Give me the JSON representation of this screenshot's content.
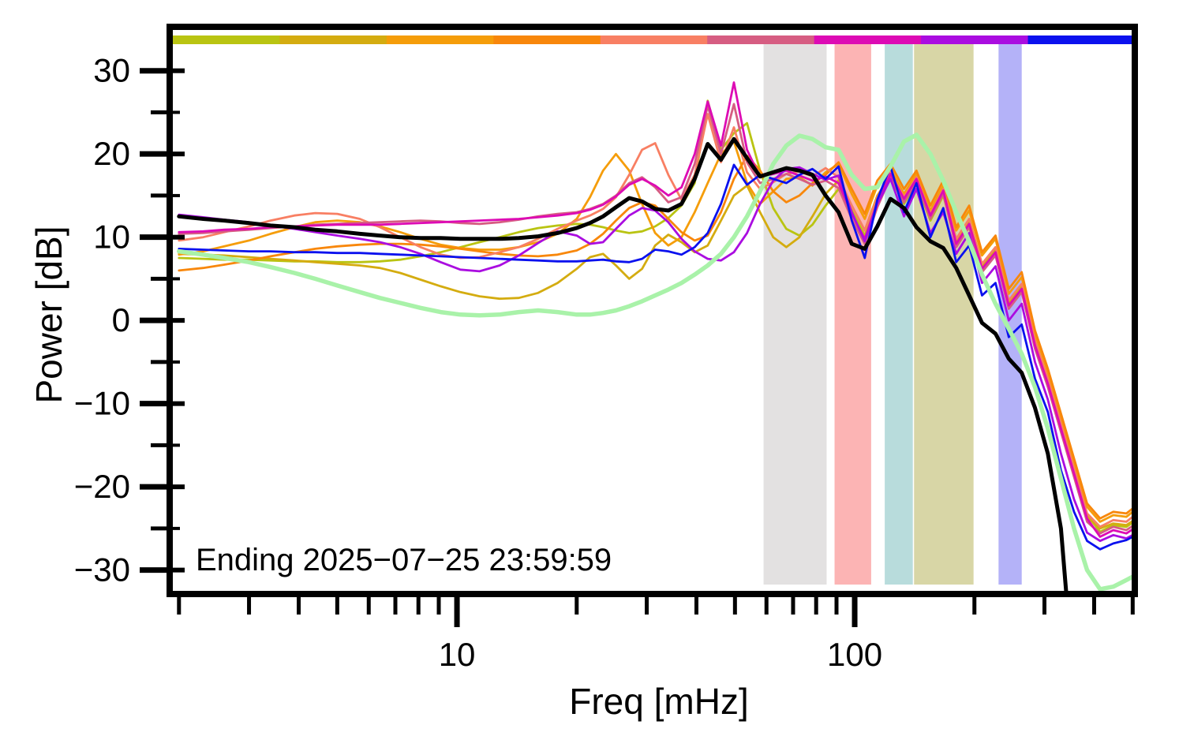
{
  "figure": {
    "y_axis_label": "Power [dB]",
    "x_axis_label": "Freq [mHz]",
    "annotation": "Ending 2025−07−25 23:59:59"
  },
  "chart_data": {
    "type": "line",
    "x_scale": "log",
    "xlabel": "Freq [mHz]",
    "ylabel": "Power [dB]",
    "xlim": [
      1.93,
      497
    ],
    "ylim": [
      -32.5,
      34.9
    ],
    "grid": false,
    "x_ticks": [
      {
        "value": 10,
        "label": "10"
      },
      {
        "value": 100,
        "label": "100"
      }
    ],
    "x_minor_ticks": [
      2,
      3,
      4,
      5,
      6,
      7,
      8,
      9,
      20,
      30,
      40,
      50,
      60,
      70,
      80,
      90,
      200,
      300,
      400,
      500
    ],
    "y_ticks": [
      {
        "value": 30,
        "label": "30"
      },
      {
        "value": 20,
        "label": "20"
      },
      {
        "value": 10,
        "label": "10"
      },
      {
        "value": 0,
        "label": "0"
      },
      {
        "value": -10,
        "label": "−10"
      },
      {
        "value": -20,
        "label": "−20"
      },
      {
        "value": -30,
        "label": "−30"
      }
    ],
    "y_minor_ticks": [
      25,
      15,
      5,
      -5,
      -15,
      -25
    ],
    "top_bar_segments": [
      {
        "name": "segment-1-yellowgreen",
        "color": "#b9c412"
      },
      {
        "name": "segment-2-gold",
        "color": "#d4ac10"
      },
      {
        "name": "segment-3-orange",
        "color": "#f59d0a"
      },
      {
        "name": "segment-4-darkorange",
        "color": "#f8870b"
      },
      {
        "name": "segment-5-salmon",
        "color": "#f87f63"
      },
      {
        "name": "segment-6-rose",
        "color": "#d65d82"
      },
      {
        "name": "segment-7-magenta",
        "color": "#dd0bb4"
      },
      {
        "name": "segment-8-violet",
        "color": "#aa0de0"
      },
      {
        "name": "segment-9-blue",
        "color": "#0b11ee"
      }
    ],
    "bands": [
      {
        "name": "band-gray",
        "color": "#e3e1e1",
        "f_start": 59,
        "f_end": 85
      },
      {
        "name": "band-pink",
        "color": "#fcb4b4",
        "f_start": 89,
        "f_end": 110
      },
      {
        "name": "band-teal",
        "color": "#b8dcdc",
        "f_start": 119,
        "f_end": 140
      },
      {
        "name": "band-olive",
        "color": "#d8d6a6",
        "f_start": 141,
        "f_end": 199
      },
      {
        "name": "band-lavender",
        "color": "#b4b2f8",
        "f_start": 230,
        "f_end": 263
      }
    ],
    "x_mhz": [
      2.0,
      2.3,
      2.6,
      3.0,
      3.4,
      3.9,
      4.4,
      5.0,
      5.7,
      6.4,
      7.2,
      8.1,
      9.1,
      10.2,
      11.4,
      12.8,
      14.3,
      16.0,
      17.9,
      20.0,
      21.6,
      23.3,
      25.1,
      27.1,
      29.2,
      31.5,
      34.0,
      36.7,
      39.6,
      42.7,
      46.1,
      49.7,
      53.6,
      57.8,
      62.4,
      67.3,
      72.6,
      78.3,
      84.5,
      91.1,
      98.3,
      106,
      114,
      123,
      133,
      143,
      155,
      167,
      180,
      194,
      209,
      226,
      244,
      263,
      284,
      306,
      330,
      356,
      384,
      414,
      447,
      482,
      500
    ],
    "series": [
      {
        "name": "spectrum-yellowgreen",
        "color": "#b9c412",
        "width": 2.8,
        "y": [
          7.5,
          7.4,
          7.3,
          7.3,
          7.2,
          7.1,
          7.1,
          7.0,
          7.0,
          7.1,
          7.3,
          7.7,
          8.2,
          8.8,
          9.4,
          10.0,
          10.6,
          11.1,
          11.4,
          11.6,
          11.5,
          11.2,
          10.8,
          10.5,
          10.7,
          11.3,
          12.3,
          13.8,
          16.5,
          26.4,
          20.5,
          22.5,
          23.7,
          18.0,
          13.5,
          11.0,
          10.2,
          11.5,
          13.8,
          15.8,
          13.2,
          10.2,
          14.4,
          17.2,
          14.0,
          16.4,
          12.0,
          15.0,
          9.6,
          11.8,
          6.6,
          8.6,
          2.2,
          4.2,
          -2.6,
          -7.4,
          -12.6,
          -18.0,
          -23.4,
          -25.4,
          -24.6,
          -24.8,
          -24.3
        ]
      },
      {
        "name": "spectrum-gold",
        "color": "#d4ac10",
        "width": 2.8,
        "y": [
          8.0,
          7.9,
          7.8,
          7.6,
          7.4,
          7.2,
          7.0,
          6.8,
          6.6,
          6.3,
          5.7,
          4.9,
          4.1,
          3.4,
          2.9,
          2.6,
          2.7,
          3.3,
          4.5,
          6.2,
          7.6,
          8.0,
          6.6,
          5.0,
          6.2,
          9.0,
          10.3,
          9.4,
          8.2,
          9.0,
          12.0,
          15.0,
          16.2,
          13.0,
          10.0,
          8.8,
          10.0,
          12.5,
          15.2,
          16.8,
          13.8,
          10.8,
          15.0,
          17.4,
          14.4,
          16.8,
          12.4,
          15.4,
          9.4,
          12.0,
          6.4,
          8.4,
          2.0,
          4.0,
          -2.8,
          -7.2,
          -12.8,
          -18.2,
          -23.6,
          -25.0,
          -24.4,
          -24.6,
          -24.1
        ]
      },
      {
        "name": "spectrum-orange",
        "color": "#f59d0a",
        "width": 2.8,
        "y": [
          7.9,
          8.3,
          8.9,
          9.6,
          10.4,
          11.2,
          11.8,
          12.0,
          11.8,
          11.3,
          10.6,
          9.8,
          9.1,
          8.7,
          8.5,
          8.5,
          8.8,
          9.4,
          10.4,
          12.2,
          14.8,
          18.0,
          20.0,
          18.0,
          14.0,
          10.5,
          9.0,
          10.0,
          13.0,
          16.5,
          20.0,
          21.5,
          16.5,
          14.0,
          15.5,
          17.0,
          17.2,
          16.2,
          17.8,
          18.8,
          15.2,
          12.2,
          16.2,
          18.2,
          15.2,
          17.6,
          13.2,
          16.2,
          10.8,
          13.2,
          7.8,
          9.8,
          3.2,
          5.2,
          -1.6,
          -6.2,
          -11.6,
          -17.0,
          -22.4,
          -24.2,
          -23.4,
          -23.6,
          -23.0
        ]
      },
      {
        "name": "spectrum-darkorange",
        "color": "#f8870b",
        "width": 2.8,
        "y": [
          6.0,
          6.3,
          6.7,
          7.2,
          7.7,
          8.2,
          8.6,
          8.9,
          9.1,
          9.2,
          9.2,
          9.1,
          8.9,
          8.6,
          8.3,
          8.0,
          7.8,
          7.7,
          7.9,
          8.4,
          9.2,
          10.4,
          12.0,
          13.5,
          14.2,
          13.8,
          12.2,
          10.6,
          9.6,
          10.2,
          13.0,
          17.0,
          19.8,
          18.0,
          15.5,
          14.2,
          15.0,
          16.5,
          17.5,
          19.0,
          15.8,
          12.8,
          16.8,
          18.8,
          15.8,
          18.0,
          13.8,
          16.8,
          11.2,
          13.8,
          8.2,
          10.2,
          3.8,
          5.8,
          -1.2,
          -5.8,
          -11.2,
          -16.6,
          -22.0,
          -23.8,
          -23.0,
          -23.2,
          -22.6
        ]
      },
      {
        "name": "spectrum-salmon",
        "color": "#f87f63",
        "width": 2.8,
        "y": [
          9.6,
          10.0,
          10.6,
          11.3,
          12.0,
          12.6,
          12.9,
          12.8,
          12.2,
          11.2,
          10.0,
          8.8,
          7.9,
          7.5,
          7.6,
          8.2,
          8.8,
          9.8,
          11.0,
          12.0,
          12.6,
          13.4,
          14.8,
          17.5,
          20.5,
          21.3,
          17.5,
          14.5,
          17.5,
          24.8,
          19.0,
          23.2,
          17.8,
          15.8,
          16.6,
          17.6,
          17.9,
          17.3,
          18.3,
          17.2,
          13.8,
          10.8,
          14.8,
          17.8,
          14.8,
          17.2,
          12.8,
          15.8,
          9.8,
          12.2,
          6.8,
          8.8,
          2.4,
          4.4,
          -2.4,
          -7.0,
          -12.4,
          -17.8,
          -23.2,
          -24.8,
          -24.0,
          -24.2,
          -23.6
        ]
      },
      {
        "name": "spectrum-rose",
        "color": "#d65d82",
        "width": 2.8,
        "y": [
          10.4,
          10.5,
          10.7,
          10.9,
          11.1,
          11.3,
          11.5,
          11.6,
          11.7,
          11.8,
          11.9,
          12.0,
          11.9,
          11.7,
          11.6,
          11.8,
          12.1,
          12.5,
          12.8,
          13.0,
          13.4,
          14.0,
          15.0,
          16.5,
          17.2,
          16.0,
          14.2,
          14.8,
          18.8,
          25.8,
          20.0,
          26.0,
          19.0,
          16.5,
          17.0,
          17.6,
          17.0,
          16.3,
          16.8,
          15.9,
          12.2,
          9.2,
          13.6,
          17.2,
          14.2,
          16.6,
          12.2,
          15.2,
          8.8,
          11.2,
          5.8,
          7.8,
          1.4,
          3.4,
          -3.4,
          -8.0,
          -13.4,
          -18.8,
          -24.2,
          -25.6,
          -24.8,
          -25.2,
          -24.7
        ]
      },
      {
        "name": "spectrum-magenta",
        "color": "#dd0bb4",
        "width": 2.8,
        "y": [
          10.6,
          10.7,
          10.9,
          11.0,
          11.2,
          11.3,
          11.4,
          11.5,
          11.5,
          11.5,
          11.6,
          11.7,
          11.8,
          11.9,
          12.0,
          12.1,
          12.2,
          12.4,
          12.6,
          12.9,
          13.3,
          13.9,
          14.9,
          16.3,
          17.0,
          16.2,
          15.0,
          16.0,
          20.0,
          26.3,
          21.0,
          28.6,
          20.5,
          17.2,
          17.6,
          18.0,
          17.4,
          16.8,
          17.3,
          16.5,
          12.8,
          9.8,
          14.2,
          17.6,
          14.6,
          17.0,
          12.6,
          15.6,
          9.2,
          11.6,
          6.2,
          8.2,
          1.8,
          3.8,
          -3.0,
          -7.6,
          -13.0,
          -18.4,
          -23.8,
          -26.0,
          -25.2,
          -25.6,
          -25.1
        ]
      },
      {
        "name": "spectrum-violet",
        "color": "#aa0de0",
        "width": 2.8,
        "y": [
          12.7,
          12.4,
          12.1,
          11.8,
          11.4,
          11.0,
          10.6,
          10.2,
          9.8,
          9.4,
          8.8,
          8.0,
          7.0,
          6.1,
          5.9,
          6.6,
          7.8,
          9.3,
          10.7,
          10.2,
          9.2,
          9.4,
          11.0,
          12.6,
          13.5,
          13.2,
          11.8,
          9.8,
          8.3,
          7.4,
          7.2,
          8.2,
          10.5,
          14.0,
          16.8,
          18.2,
          18.4,
          17.6,
          16.9,
          17.4,
          13.0,
          9.5,
          14.0,
          17.0,
          12.5,
          15.8,
          10.5,
          13.0,
          8.0,
          10.5,
          4.5,
          6.5,
          0.0,
          2.0,
          -5.0,
          -9.5,
          -16.0,
          -21.5,
          -25.5,
          -26.5,
          -25.8,
          -26.2,
          -25.8
        ]
      },
      {
        "name": "spectrum-blue",
        "color": "#0b11ee",
        "width": 2.8,
        "y": [
          8.6,
          8.5,
          8.4,
          8.3,
          8.3,
          8.2,
          8.2,
          8.1,
          8.1,
          8.0,
          7.9,
          7.8,
          7.7,
          7.6,
          7.5,
          7.4,
          7.3,
          7.2,
          7.1,
          7.1,
          7.2,
          7.3,
          7.1,
          7.0,
          7.4,
          8.5,
          8.3,
          7.9,
          8.8,
          10.5,
          14.0,
          18.7,
          16.3,
          17.5,
          17.0,
          16.5,
          17.5,
          18.2,
          17.0,
          18.5,
          12.0,
          7.5,
          14.5,
          18.5,
          13.0,
          16.5,
          10.0,
          13.5,
          7.0,
          9.0,
          3.0,
          4.5,
          -2.0,
          -0.5,
          -7.0,
          -11.0,
          -18.0,
          -23.0,
          -26.5,
          -27.5,
          -26.8,
          -26.4,
          -26.0
        ]
      },
      {
        "name": "reference-pale-green",
        "color": "#a9f2a9",
        "width": 5.5,
        "y": [
          8.3,
          7.9,
          7.5,
          7.0,
          6.4,
          5.7,
          5.0,
          4.2,
          3.4,
          2.7,
          2.1,
          1.5,
          1.0,
          0.7,
          0.6,
          0.7,
          1.0,
          1.2,
          1.0,
          0.7,
          0.7,
          0.9,
          1.2,
          1.7,
          2.3,
          3.0,
          3.7,
          4.5,
          5.5,
          6.6,
          8.0,
          10.0,
          12.5,
          15.5,
          18.8,
          21.0,
          22.2,
          21.8,
          20.8,
          20.5,
          17.5,
          15.8,
          16.0,
          18.5,
          21.5,
          22.3,
          20.0,
          16.8,
          13.0,
          9.5,
          5.5,
          2.0,
          -1.0,
          -4.0,
          -8.0,
          -13.0,
          -19.0,
          -25.0,
          -30.0,
          -32.3,
          -32.0,
          -31.2,
          -30.8
        ]
      },
      {
        "name": "mean-black",
        "color": "#000000",
        "width": 5.0,
        "x": [
          2.0,
          2.3,
          2.6,
          3.0,
          3.4,
          3.9,
          4.4,
          5.0,
          5.7,
          6.4,
          7.2,
          8.1,
          9.1,
          10.2,
          11.4,
          12.8,
          14.3,
          16.0,
          17.9,
          20.0,
          21.6,
          23.3,
          25.1,
          27.1,
          29.2,
          31.5,
          34.0,
          36.7,
          39.6,
          42.7,
          46.1,
          49.7,
          53.6,
          57.8,
          62.4,
          67.3,
          72.6,
          78.3,
          84.5,
          91.1,
          98.3,
          106,
          114,
          123,
          133,
          143,
          155,
          167,
          180,
          194,
          209,
          226,
          244,
          263,
          284,
          306,
          330,
          340
        ],
        "y": [
          12.5,
          12.2,
          12.0,
          11.7,
          11.4,
          11.2,
          10.9,
          10.7,
          10.4,
          10.2,
          10.0,
          9.9,
          9.9,
          9.8,
          9.8,
          9.8,
          9.9,
          10.1,
          10.5,
          11.1,
          11.7,
          12.5,
          13.6,
          14.7,
          14.3,
          13.4,
          13.2,
          14.0,
          17.0,
          21.2,
          19.3,
          21.8,
          19.5,
          17.3,
          17.8,
          18.3,
          18.0,
          17.5,
          15.0,
          13.0,
          9.2,
          8.6,
          11.3,
          14.6,
          13.5,
          11.2,
          9.5,
          8.7,
          6.3,
          3.0,
          -0.3,
          -1.6,
          -4.6,
          -6.3,
          -10.5,
          -16.0,
          -25.0,
          -32.5
        ]
      }
    ]
  }
}
